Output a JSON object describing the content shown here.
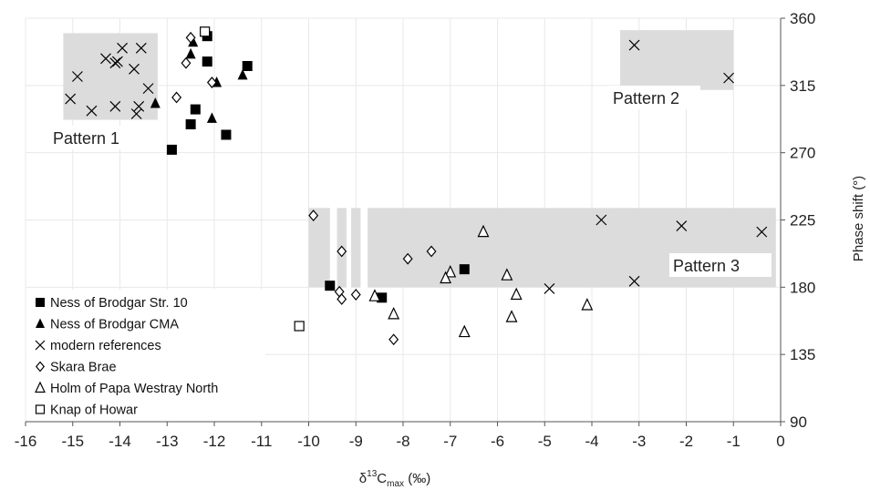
{
  "chart_data": {
    "type": "scatter",
    "xlabel_main": "δ",
    "xlabel_sup": "13",
    "xlabel_c": "C",
    "xlabel_sub": "max",
    "xlabel_unit": " (‰)",
    "ylabel": "Phase shift (°)",
    "xlim": [
      -16,
      0
    ],
    "ylim": [
      90,
      360
    ],
    "x_ticks": [
      -16,
      -15,
      -14,
      -13,
      -12,
      -11,
      -10,
      -9,
      -8,
      -7,
      -6,
      -5,
      -4,
      -3,
      -2,
      -1,
      0
    ],
    "y_ticks": [
      90,
      135,
      180,
      225,
      270,
      315,
      360
    ],
    "grid": "major gridlines (white on white background)",
    "legend_position": "bottom-left",
    "regions": [
      {
        "label": "Pattern 1",
        "x": [
          -15.2,
          -13.2
        ],
        "y": [
          292,
          350
        ]
      },
      {
        "label": "Pattern 2",
        "x": [
          -3.4,
          -1.0
        ],
        "y": [
          312,
          352
        ]
      },
      {
        "label": "Pattern 3",
        "x": [
          -10.0,
          -0.1
        ],
        "y": [
          180,
          233
        ]
      }
    ],
    "series": [
      {
        "name": "Ness of Brodgar Str. 10",
        "marker": "square-filled",
        "points": [
          [
            -12.15,
            348
          ],
          [
            -12.15,
            331
          ],
          [
            -11.3,
            328
          ],
          [
            -12.4,
            299
          ],
          [
            -12.5,
            289
          ],
          [
            -11.75,
            282
          ],
          [
            -12.9,
            272
          ],
          [
            -6.7,
            192
          ],
          [
            -9.55,
            181
          ],
          [
            -8.45,
            173
          ]
        ]
      },
      {
        "name": "Ness of Brodgar CMA",
        "marker": "triangle-filled",
        "points": [
          [
            -12.45,
            344
          ],
          [
            -12.5,
            336
          ],
          [
            -11.4,
            322
          ],
          [
            -11.95,
            317
          ],
          [
            -13.25,
            303
          ],
          [
            -12.05,
            293
          ]
        ]
      },
      {
        "name": "modern references",
        "marker": "x",
        "points": [
          [
            -13.95,
            340
          ],
          [
            -13.55,
            340
          ],
          [
            -14.3,
            333
          ],
          [
            -14.05,
            331
          ],
          [
            -14.1,
            330
          ],
          [
            -13.7,
            326
          ],
          [
            -14.9,
            321
          ],
          [
            -13.4,
            313
          ],
          [
            -15.05,
            306
          ],
          [
            -14.1,
            301
          ],
          [
            -13.6,
            301
          ],
          [
            -14.6,
            298
          ],
          [
            -13.65,
            296
          ],
          [
            -3.1,
            342
          ],
          [
            -1.1,
            320
          ],
          [
            -3.8,
            225
          ],
          [
            -2.1,
            221
          ],
          [
            -0.4,
            217
          ],
          [
            -3.1,
            184
          ],
          [
            -4.9,
            179
          ]
        ]
      },
      {
        "name": "Skara Brae",
        "marker": "diamond-open",
        "points": [
          [
            -12.5,
            347
          ],
          [
            -12.6,
            330
          ],
          [
            -12.05,
            317
          ],
          [
            -12.8,
            307
          ],
          [
            -9.9,
            228
          ],
          [
            -9.3,
            204
          ],
          [
            -7.4,
            204
          ],
          [
            -7.9,
            199
          ],
          [
            -9.35,
            177
          ],
          [
            -9.0,
            175
          ],
          [
            -9.3,
            172
          ],
          [
            -8.2,
            145
          ]
        ]
      },
      {
        "name": "Holm of Papa Westray North",
        "marker": "triangle-open",
        "points": [
          [
            -6.3,
            217
          ],
          [
            -7.0,
            190
          ],
          [
            -7.1,
            186
          ],
          [
            -5.8,
            188
          ],
          [
            -5.6,
            175
          ],
          [
            -8.6,
            174
          ],
          [
            -4.1,
            168
          ],
          [
            -8.2,
            162
          ],
          [
            -5.7,
            160
          ],
          [
            -6.7,
            150
          ]
        ]
      },
      {
        "name": "Knap of Howar",
        "marker": "square-open",
        "points": [
          [
            -12.2,
            351
          ],
          [
            -10.2,
            154
          ]
        ]
      }
    ]
  }
}
